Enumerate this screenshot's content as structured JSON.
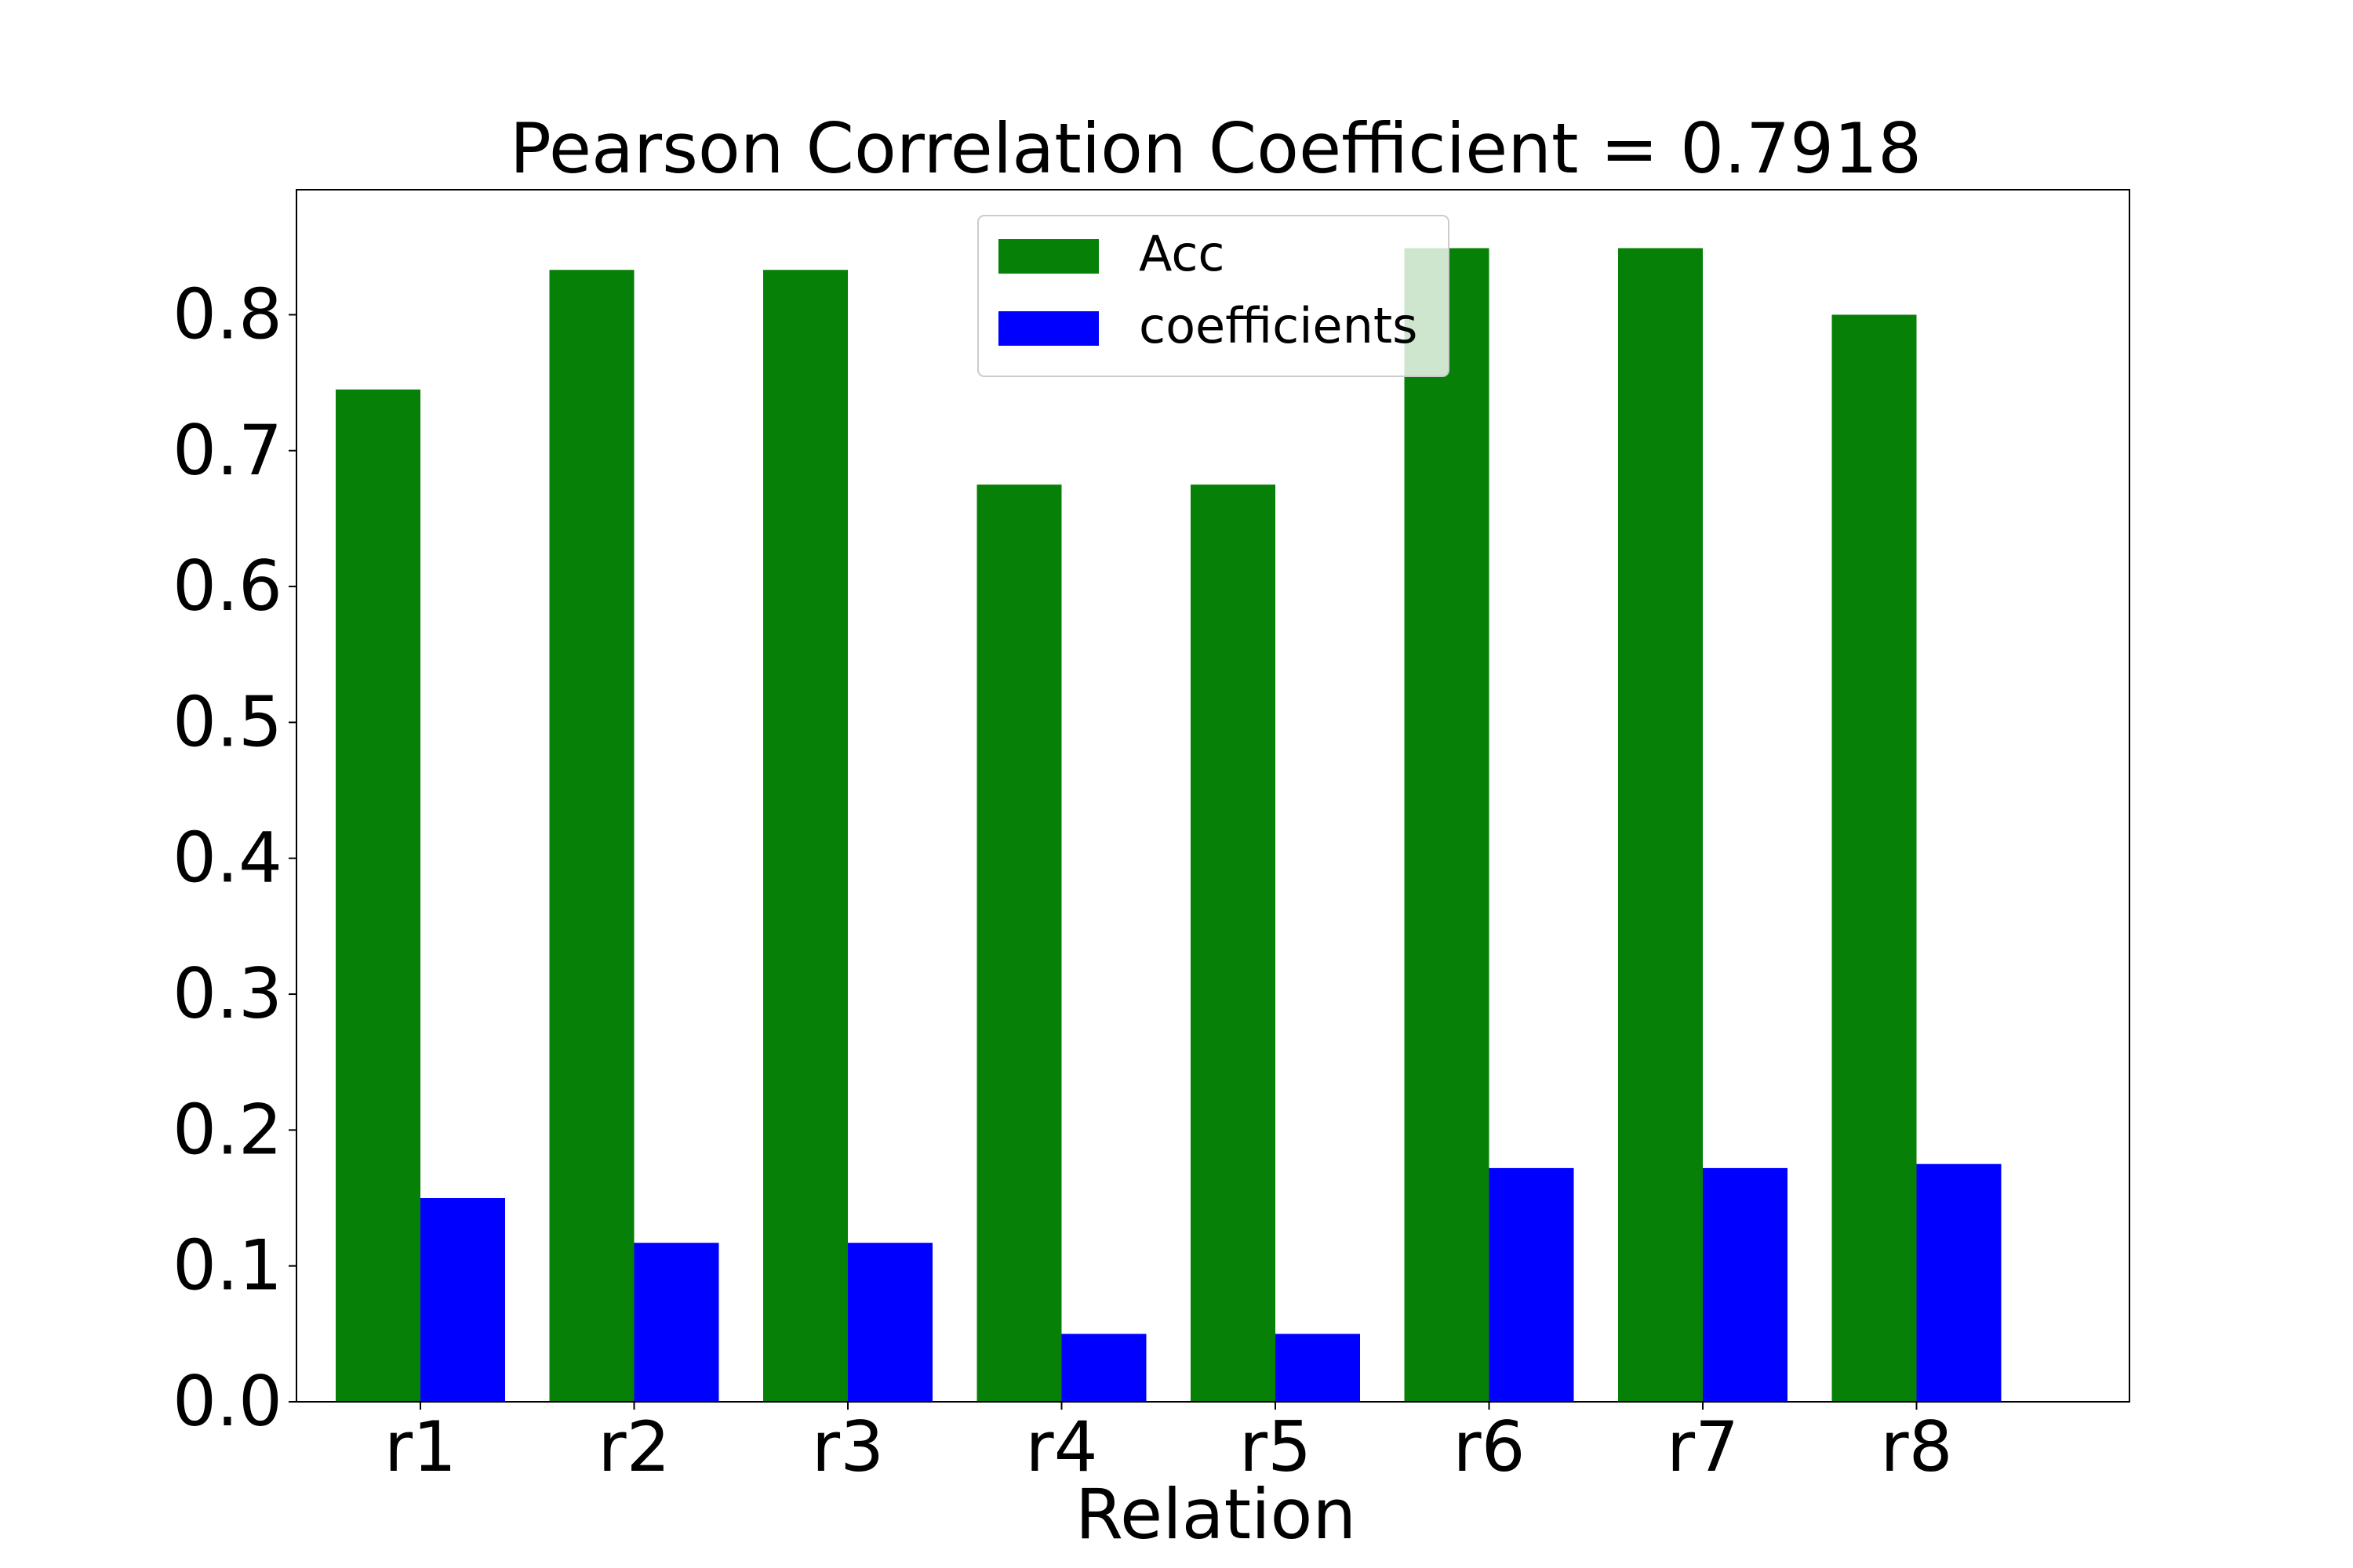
{
  "chart_data": {
    "type": "bar",
    "title": "Pearson Correlation Coefficient = 0.7918",
    "xlabel": "Relation",
    "ylabel": "",
    "categories": [
      "r1",
      "r2",
      "r3",
      "r4",
      "r5",
      "r6",
      "r7",
      "r8"
    ],
    "series": [
      {
        "name": "Acc",
        "color": "#078007",
        "values": [
          0.745,
          0.833,
          0.833,
          0.675,
          0.675,
          0.849,
          0.849,
          0.8
        ]
      },
      {
        "name": "coefficients",
        "color": "#0000ff",
        "values": [
          0.15,
          0.117,
          0.117,
          0.05,
          0.05,
          0.172,
          0.172,
          0.175
        ]
      }
    ],
    "ylim": [
      0,
      0.892
    ],
    "yticks": [
      "0.0",
      "0.1",
      "0.2",
      "0.3",
      "0.4",
      "0.5",
      "0.6",
      "0.7",
      "0.8"
    ],
    "legend_position": "top-center",
    "grid": false
  }
}
